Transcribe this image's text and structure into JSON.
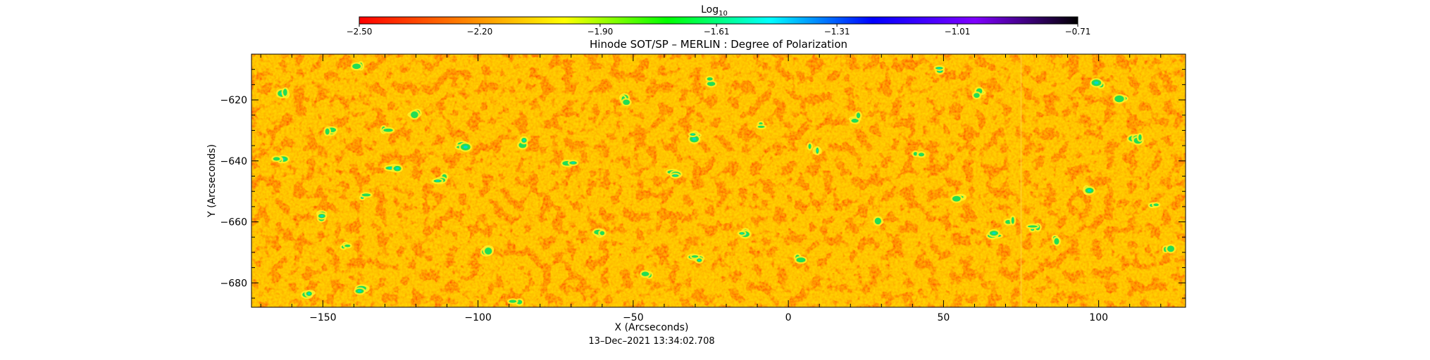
{
  "chart_data": {
    "type": "heatmap",
    "title": "Hinode SOT/SP – MERLIN : Degree of Polarization",
    "xlabel": "X (Arcseconds)",
    "ylabel": "Y (Arcseconds)",
    "timestamp": "13–Dec–2021  13:34:02.708",
    "xlim": [
      -173,
      128
    ],
    "ylim": [
      -688,
      -605
    ],
    "x_ticks": [
      -150,
      -100,
      -50,
      0,
      50,
      100
    ],
    "x_tick_labels": [
      "−150",
      "−100",
      "−50",
      "0",
      "50",
      "100"
    ],
    "y_ticks": [
      -620,
      -640,
      -660,
      -680
    ],
    "y_tick_labels": [
      "−620",
      "−640",
      "−660",
      "−680"
    ],
    "colorbar": {
      "label_main": "Log",
      "label_sub": "10",
      "range": [
        -2.5,
        -0.71
      ],
      "scale": "log10",
      "ticks": [
        -2.5,
        -2.2,
        -1.9,
        -1.61,
        -1.31,
        -1.01,
        -0.71
      ],
      "tick_labels": [
        "−2.50",
        "−2.20",
        "−1.90",
        "−1.61",
        "−1.31",
        "−1.01",
        "−0.71"
      ],
      "colors": [
        "#ff0000",
        "#ff7f00",
        "#ffff00",
        "#00ff00",
        "#00ffff",
        "#0000ff",
        "#7f00ff",
        "#000000"
      ]
    },
    "dominant_range": [
      -2.5,
      -2.2
    ],
    "patch_color": "#22dd55",
    "grid": false
  }
}
